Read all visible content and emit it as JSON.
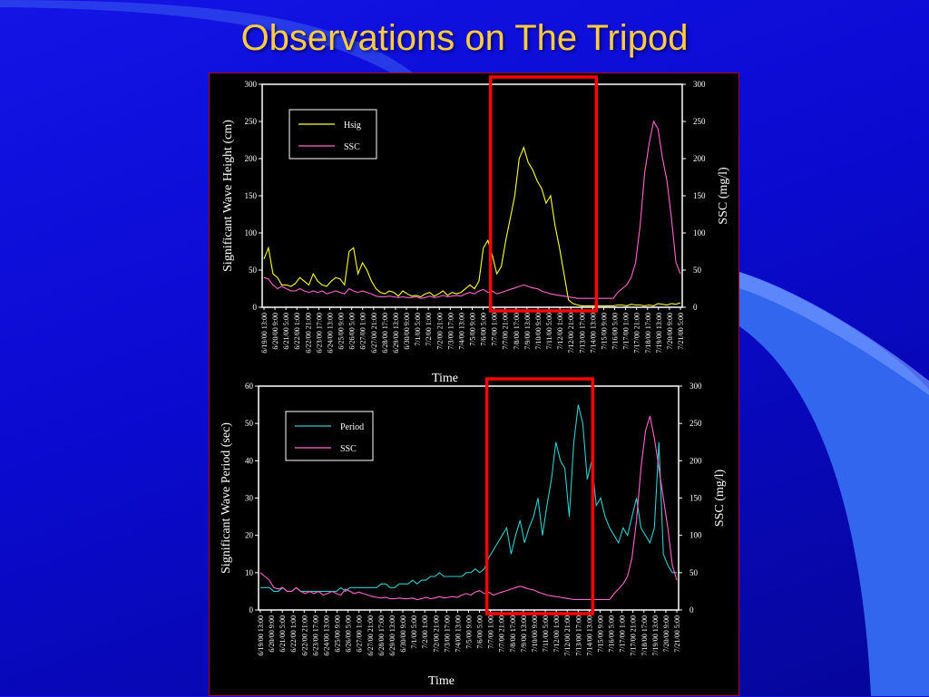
{
  "slide": {
    "title": "Observations on The Tripod"
  },
  "colors": {
    "background": "#0a0ad0",
    "title": "#ffcc44",
    "hsig": "#ffff33",
    "ssc": "#ff66cc",
    "period": "#33cccc",
    "highlight_box": "#ff0000",
    "swoosh": "#3a6cf0"
  },
  "chart_data": [
    {
      "type": "line",
      "xlabel": "Time",
      "ylabel": "Significant Wave Height (cm)",
      "y2label": "SSC (mg/l)",
      "ylim": [
        0,
        300
      ],
      "y2lim": [
        0,
        300
      ],
      "yticks": [
        "0",
        "50",
        "100",
        "150",
        "200",
        "250",
        "300"
      ],
      "y2ticks": [
        "0",
        "50",
        "100",
        "150",
        "200",
        "250",
        "300"
      ],
      "x_tick_labels": [
        "6/19/00 13:00",
        "6/20/00 9:00",
        "6/21/00 5:00",
        "6/22/00 1:00",
        "6/22/00 21:00",
        "6/23/00 17:00",
        "6/24/00 13:00",
        "6/25/00 9:00",
        "6/26/00 5:00",
        "6/27/00 1:00",
        "6/27/00 21:00",
        "6/28/00 17:00",
        "6/29/00 13:00",
        "6/30/00 9:00",
        "7/1/00 5:00",
        "7/2/00 1:00",
        "7/2/00 21:00",
        "7/3/00 17:00",
        "7/4/00 13:00",
        "7/5/00 9:00",
        "7/6/00 5:00",
        "7/7/00 1:00",
        "7/7/00 21:00",
        "7/8/00 17:00",
        "7/9/00 13:00",
        "7/10/00 9:00",
        "7/11/00 5:00",
        "7/12/00 1:00",
        "7/12/00 21:00",
        "7/13/00 17:00",
        "7/14/00 13:00",
        "7/15/00 9:00",
        "7/16/00 5:00",
        "7/17/00 1:00",
        "7/17/00 21:00",
        "7/18/00 17:00",
        "7/19/00 13:00",
        "7/20/00 9:00",
        "7/21/00 5:00"
      ],
      "legend": [
        "Hsig",
        "SSC"
      ],
      "legend_position": "top-left",
      "highlight_range": [
        "7/7/00 1:00",
        "7/14/00 13:00"
      ],
      "series": [
        {
          "name": "Hsig",
          "axis": "left",
          "color": "#ffff33",
          "values": [
            65,
            80,
            45,
            40,
            30,
            30,
            28,
            32,
            40,
            35,
            30,
            45,
            35,
            30,
            28,
            35,
            40,
            38,
            30,
            75,
            80,
            45,
            60,
            50,
            35,
            25,
            20,
            18,
            22,
            20,
            15,
            22,
            18,
            15,
            16,
            14,
            18,
            20,
            15,
            18,
            22,
            16,
            20,
            18,
            20,
            25,
            30,
            25,
            35,
            80,
            90,
            70,
            45,
            55,
            90,
            120,
            150,
            200,
            215,
            195,
            185,
            170,
            160,
            140,
            150,
            110,
            80,
            45,
            10,
            5,
            3,
            2,
            2,
            2,
            2,
            2,
            2,
            2,
            2,
            3,
            3,
            2,
            4,
            3,
            3,
            2,
            3,
            2,
            5,
            4,
            3,
            5,
            4,
            6
          ]
        },
        {
          "name": "SSC",
          "axis": "right",
          "color": "#ff66cc",
          "values": [
            40,
            38,
            30,
            25,
            28,
            25,
            22,
            22,
            25,
            22,
            20,
            22,
            20,
            22,
            18,
            20,
            22,
            20,
            18,
            25,
            22,
            20,
            22,
            20,
            18,
            15,
            14,
            14,
            15,
            14,
            13,
            14,
            13,
            13,
            14,
            12,
            13,
            15,
            13,
            14,
            16,
            14,
            15,
            16,
            15,
            18,
            20,
            18,
            22,
            24,
            20,
            22,
            18,
            20,
            22,
            24,
            26,
            28,
            30,
            28,
            26,
            25,
            22,
            20,
            18,
            17,
            16,
            15,
            14,
            13,
            12,
            12,
            12,
            12,
            12,
            12,
            12,
            12,
            12,
            20,
            25,
            30,
            40,
            60,
            110,
            180,
            220,
            250,
            240,
            200,
            170,
            120,
            60,
            45
          ]
        }
      ]
    },
    {
      "type": "line",
      "xlabel": "Time",
      "ylabel": "Significant Wave Period (sec)",
      "y2label": "SSC (mg/l)",
      "ylim": [
        0,
        60
      ],
      "y2lim": [
        0,
        300
      ],
      "yticks": [
        "0",
        "10",
        "20",
        "30",
        "40",
        "50",
        "60"
      ],
      "y2ticks": [
        "0",
        "50",
        "100",
        "150",
        "200",
        "250",
        "300"
      ],
      "x_tick_labels": [
        "6/19/00 13:00",
        "6/20/00 9:00",
        "6/21/00 5:00",
        "6/22/00 1:00",
        "6/22/00 21:00",
        "6/23/00 17:00",
        "6/24/00 13:00",
        "6/25/00 9:00",
        "6/26/00 5:00",
        "6/27/00 1:00",
        "6/27/00 21:00",
        "6/28/00 17:00",
        "6/29/00 13:00",
        "6/30/00 9:00",
        "7/1/00 5:00",
        "7/2/00 1:00",
        "7/2/00 21:00",
        "7/3/00 17:00",
        "7/4/00 13:00",
        "7/5/00 9:00",
        "7/6/00 5:00",
        "7/7/00 1:00",
        "7/7/00 21:00",
        "7/8/00 17:00",
        "7/9/00 13:00",
        "7/10/00 9:00",
        "7/11/00 5:00",
        "7/12/00 1:00",
        "7/12/00 21:00",
        "7/13/00 17:00",
        "7/14/00 13:00",
        "7/15/00 9:00",
        "7/16/00 5:00",
        "7/17/00 1:00",
        "7/17/00 21:00",
        "7/18/00 17:00",
        "7/19/00 13:00",
        "7/20/00 9:00",
        "7/21/00 5:00"
      ],
      "legend": [
        "Period",
        "SSC"
      ],
      "legend_position": "top-left",
      "highlight_range": [
        "7/7/00 1:00",
        "7/14/00 13:00"
      ],
      "series": [
        {
          "name": "Period",
          "axis": "left",
          "color": "#33cccc",
          "values": [
            6,
            6,
            6,
            5,
            5,
            6,
            5,
            5,
            6,
            5,
            5,
            5,
            5,
            5,
            5,
            5,
            5,
            5,
            6,
            5,
            6,
            6,
            6,
            6,
            6,
            6,
            6,
            7,
            7,
            6,
            6,
            7,
            7,
            7,
            8,
            7,
            8,
            8,
            9,
            9,
            10,
            9,
            9,
            9,
            9,
            9,
            10,
            10,
            11,
            10,
            11,
            14,
            16,
            18,
            20,
            22,
            15,
            20,
            24,
            18,
            22,
            25,
            30,
            20,
            28,
            35,
            45,
            40,
            38,
            25,
            45,
            55,
            50,
            35,
            40,
            28,
            30,
            25,
            22,
            20,
            18,
            22,
            20,
            25,
            30,
            22,
            20,
            18,
            22,
            45,
            15,
            12,
            10,
            10
          ]
        },
        {
          "name": "SSC",
          "axis": "right",
          "color": "#ff66cc",
          "values": [
            50,
            45,
            40,
            30,
            28,
            30,
            25,
            25,
            30,
            25,
            22,
            25,
            22,
            25,
            20,
            22,
            25,
            22,
            20,
            28,
            25,
            22,
            24,
            22,
            20,
            18,
            17,
            16,
            17,
            15,
            15,
            16,
            15,
            15,
            16,
            14,
            15,
            17,
            15,
            16,
            18,
            16,
            17,
            18,
            17,
            20,
            22,
            20,
            24,
            26,
            22,
            24,
            20,
            22,
            24,
            26,
            28,
            30,
            32,
            30,
            28,
            27,
            24,
            22,
            20,
            19,
            18,
            17,
            16,
            15,
            14,
            14,
            14,
            14,
            14,
            14,
            14,
            14,
            14,
            22,
            28,
            35,
            45,
            70,
            120,
            190,
            240,
            260,
            230,
            190,
            150,
            110,
            60,
            40
          ]
        }
      ]
    }
  ]
}
